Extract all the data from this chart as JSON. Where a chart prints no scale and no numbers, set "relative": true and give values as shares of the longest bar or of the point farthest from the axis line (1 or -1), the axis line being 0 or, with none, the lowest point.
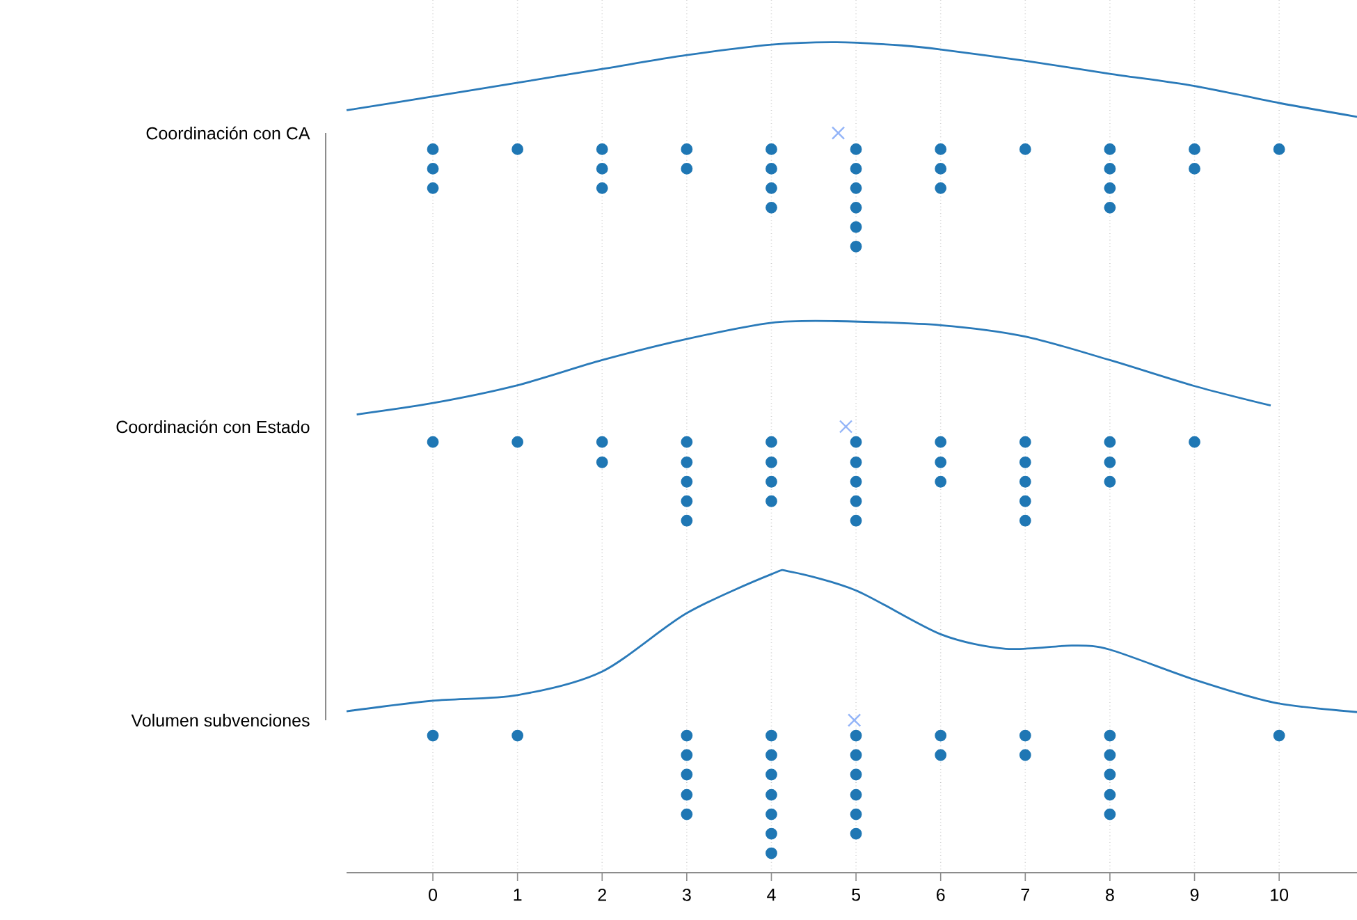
{
  "chart_data": {
    "type": "scatter",
    "relative": true,
    "xlim": [
      -1.02,
      10.92
    ],
    "xticks": [
      0,
      1,
      2,
      3,
      4,
      5,
      6,
      7,
      8,
      9,
      10
    ],
    "grid": "x",
    "annotations": [
      "Coordinación con CA",
      "Coordinación con Estado",
      "Volumen subvenciones"
    ],
    "series": [
      {
        "type": "line",
        "color": "#2a7ab9",
        "marker": "none",
        "x": [
          -1.02,
          0,
          1,
          2,
          3,
          4,
          4.77,
          5.54,
          6,
          7,
          8,
          9,
          10,
          10.92
        ],
        "values": [
          0.916,
          0.933,
          0.95,
          0.967,
          0.984,
          0.997,
          1.0,
          0.996,
          0.991,
          0.977,
          0.961,
          0.946,
          0.925,
          0.908
        ]
      },
      {
        "type": "line",
        "color": "#2a7ab9",
        "marker": "none",
        "x": [
          -0.9,
          0,
          1,
          2,
          3,
          4,
          4.77,
          6,
          7,
          8,
          9,
          9.9
        ],
        "values": [
          0.541,
          0.555,
          0.577,
          0.608,
          0.634,
          0.654,
          0.656,
          0.651,
          0.637,
          0.608,
          0.576,
          0.552
        ]
      },
      {
        "type": "line",
        "color": "#2a7ab9",
        "marker": "none",
        "x": [
          -1.02,
          0,
          1,
          2,
          3,
          4,
          4.23,
          5,
          6,
          6.77,
          7.55,
          8,
          9,
          9.93,
          10.92
        ],
        "values": [
          0.175,
          0.188,
          0.195,
          0.224,
          0.296,
          0.344,
          0.347,
          0.324,
          0.27,
          0.252,
          0.256,
          0.251,
          0.214,
          0.186,
          0.174
        ]
      },
      {
        "color": "#1f77b4",
        "marker": "circle",
        "x": [
          0,
          0,
          0,
          1,
          2,
          2,
          2,
          3,
          3,
          4,
          4,
          4,
          4,
          5,
          5,
          5,
          5,
          5,
          5,
          6,
          6,
          6,
          7,
          8,
          8,
          8,
          8,
          9,
          9,
          10
        ],
        "values": [
          0.868,
          0.844,
          0.82,
          0.868,
          0.868,
          0.844,
          0.82,
          0.868,
          0.844,
          0.868,
          0.844,
          0.82,
          0.796,
          0.868,
          0.844,
          0.82,
          0.796,
          0.772,
          0.748,
          0.868,
          0.844,
          0.82,
          0.868,
          0.868,
          0.844,
          0.82,
          0.796,
          0.868,
          0.844,
          0.868
        ]
      },
      {
        "color": "#1f77b4",
        "marker": "circle",
        "x": [
          0,
          1,
          2,
          2,
          3,
          3,
          3,
          3,
          3,
          4,
          4,
          4,
          4,
          5,
          5,
          5,
          5,
          5,
          6,
          6,
          6,
          7,
          7,
          7,
          7,
          7,
          8,
          8,
          8,
          9
        ],
        "values": [
          0.507,
          0.507,
          0.507,
          0.482,
          0.507,
          0.482,
          0.458,
          0.434,
          0.41,
          0.507,
          0.482,
          0.458,
          0.434,
          0.507,
          0.482,
          0.458,
          0.434,
          0.41,
          0.507,
          0.482,
          0.458,
          0.507,
          0.482,
          0.458,
          0.434,
          0.41,
          0.507,
          0.482,
          0.458,
          0.507
        ]
      },
      {
        "color": "#1f77b4",
        "marker": "circle",
        "x": [
          0,
          1,
          3,
          3,
          3,
          3,
          3,
          4,
          4,
          4,
          4,
          4,
          4,
          4,
          5,
          5,
          5,
          5,
          5,
          5,
          6,
          6,
          7,
          7,
          8,
          8,
          8,
          8,
          8,
          10
        ],
        "values": [
          0.145,
          0.145,
          0.145,
          0.121,
          0.097,
          0.072,
          0.048,
          0.145,
          0.121,
          0.097,
          0.072,
          0.048,
          0.024,
          0,
          0.145,
          0.121,
          0.097,
          0.072,
          0.048,
          0.024,
          0.145,
          0.121,
          0.145,
          0.121,
          0.145,
          0.121,
          0.097,
          0.072,
          0.048,
          0.145
        ]
      },
      {
        "color": "#93b4f8",
        "marker": "cross",
        "x": [
          4.79,
          4.88,
          4.98
        ],
        "values": [
          0.888,
          0.526,
          0.164
        ]
      }
    ]
  }
}
